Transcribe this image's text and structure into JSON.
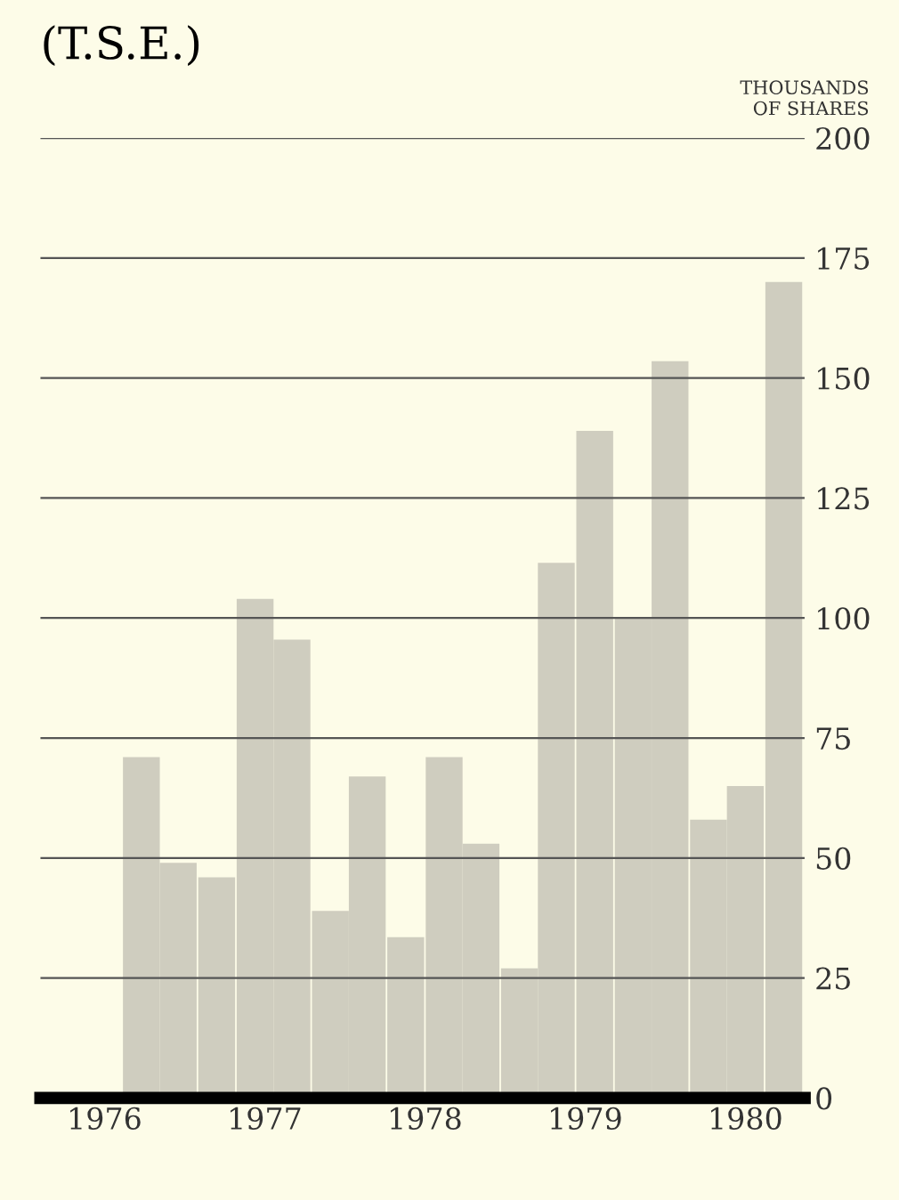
{
  "chart_data": {
    "type": "bar",
    "title": "(T.S.E.)",
    "ylabel": "THOUSANDS\nOF SHARES",
    "x": [
      1976.23,
      1976.46,
      1976.7,
      1976.94,
      1977.17,
      1977.41,
      1977.64,
      1977.88,
      1978.12,
      1978.35,
      1978.59,
      1978.82,
      1979.06,
      1979.3,
      1979.53,
      1979.77,
      1980.0,
      1980.24
    ],
    "values": [
      71,
      49,
      46,
      104,
      95.5,
      39,
      67,
      33.5,
      71,
      53,
      27,
      111.5,
      139,
      100,
      153.5,
      58,
      65,
      170
    ],
    "color": "#cfcdbf",
    "xlim": [
      1975.6,
      1980.37
    ],
    "xticks": [
      1976,
      1977,
      1978,
      1979,
      1980
    ],
    "ylim": [
      0,
      200
    ],
    "yticks": [
      0,
      25,
      50,
      75,
      100,
      125,
      150,
      175,
      200
    ],
    "grid": "y"
  }
}
